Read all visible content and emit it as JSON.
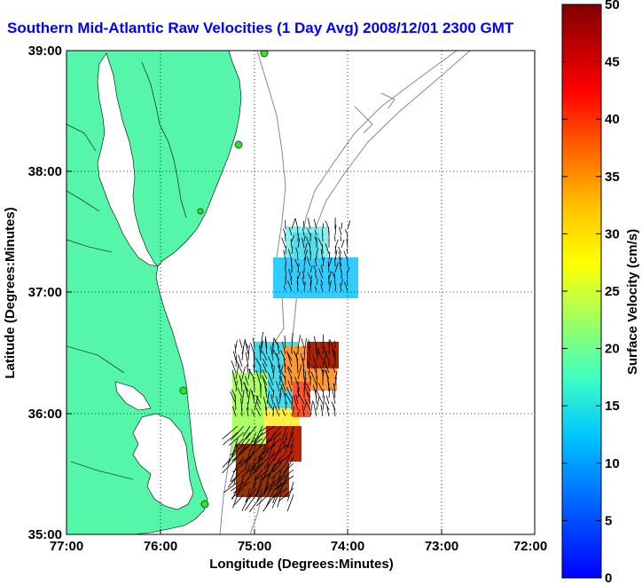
{
  "title": "Southern Mid-Atlantic Raw Velocities (1 Day Avg) 2008/12/01 2300 GMT",
  "xlabel": "Longitude (Degrees:Minutes)",
  "ylabel": "Latitude (Degrees:Minutes)",
  "colorbar_label": "Surface Velocity (cm/s)",
  "lon_ticks": [
    "77:00",
    "76:00",
    "75:00",
    "74:00",
    "73:00",
    "72:00"
  ],
  "lat_ticks": [
    "39:00",
    "38:00",
    "37:00",
    "36:00",
    "35:00"
  ],
  "colorbar_ticks": [
    "50",
    "45",
    "40",
    "35",
    "30",
    "25",
    "20",
    "15",
    "10",
    "5",
    "0"
  ],
  "colors": {
    "land": "#55f5aa",
    "title": "#0000ff",
    "isobath": "#888888"
  }
}
